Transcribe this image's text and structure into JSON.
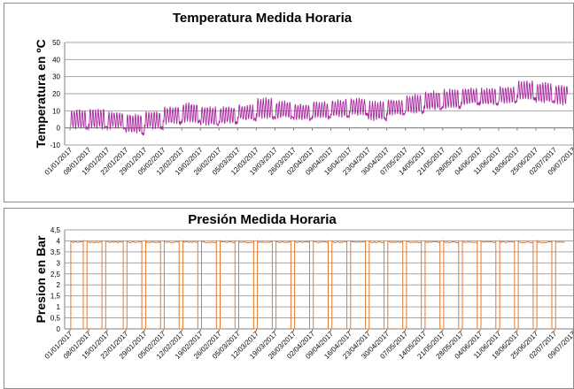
{
  "chart_data": [
    {
      "type": "line",
      "title": "Temperatura Medida Horaria",
      "xlabel": "",
      "ylabel": "Temperatura en ºC",
      "ylim": [
        -10,
        50
      ],
      "yticks": [
        "-10",
        "0",
        "10",
        "20",
        "30",
        "40",
        "50"
      ],
      "grid": true,
      "legend": "none",
      "color": "#a8289e",
      "x_tick_labels": [
        "01/01/2017",
        "08/01/2017",
        "15/01/2017",
        "22/01/2017",
        "29/01/2017",
        "05/02/2017",
        "12/02/2017",
        "19/02/2017",
        "26/02/2017",
        "05/03/2017",
        "12/03/2017",
        "19/03/2017",
        "26/03/2017",
        "02/04/2017",
        "09/04/2017",
        "16/04/2017",
        "23/04/2017",
        "30/04/2017",
        "07/05/2017",
        "14/05/2017",
        "21/05/2017",
        "28/05/2017",
        "04/06/2017",
        "11/06/2017",
        "18/06/2017",
        "25/06/2017",
        "02/07/2017",
        "09/07/2017"
      ],
      "series": [
        {
          "values_daily_range_by_week": [
            {
              "week_start": "01/01/2017",
              "min": 0,
              "max": 10
            },
            {
              "week_start": "08/01/2017",
              "min": 0,
              "max": 11
            },
            {
              "week_start": "15/01/2017",
              "min": 0,
              "max": 9
            },
            {
              "week_start": "22/01/2017",
              "min": -3,
              "max": 8
            },
            {
              "week_start": "29/01/2017",
              "min": 0,
              "max": 9
            },
            {
              "week_start": "05/02/2017",
              "min": 3,
              "max": 12
            },
            {
              "week_start": "12/02/2017",
              "min": 4,
              "max": 14
            },
            {
              "week_start": "19/02/2017",
              "min": 2,
              "max": 12
            },
            {
              "week_start": "26/02/2017",
              "min": 3,
              "max": 12
            },
            {
              "week_start": "05/03/2017",
              "min": 5,
              "max": 13
            },
            {
              "week_start": "12/03/2017",
              "min": 6,
              "max": 17
            },
            {
              "week_start": "19/03/2017",
              "min": 6,
              "max": 15
            },
            {
              "week_start": "26/03/2017",
              "min": 5,
              "max": 14
            },
            {
              "week_start": "02/04/2017",
              "min": 6,
              "max": 15
            },
            {
              "week_start": "09/04/2017",
              "min": 7,
              "max": 16
            },
            {
              "week_start": "16/04/2017",
              "min": 8,
              "max": 17
            },
            {
              "week_start": "23/04/2017",
              "min": 5,
              "max": 15
            },
            {
              "week_start": "30/04/2017",
              "min": 8,
              "max": 16
            },
            {
              "week_start": "07/05/2017",
              "min": 9,
              "max": 19
            },
            {
              "week_start": "14/05/2017",
              "min": 11,
              "max": 21
            },
            {
              "week_start": "21/05/2017",
              "min": 12,
              "max": 22
            },
            {
              "week_start": "28/05/2017",
              "min": 14,
              "max": 23
            },
            {
              "week_start": "04/06/2017",
              "min": 14,
              "max": 23
            },
            {
              "week_start": "11/06/2017",
              "min": 15,
              "max": 24
            },
            {
              "week_start": "18/06/2017",
              "min": 17,
              "max": 27
            },
            {
              "week_start": "25/06/2017",
              "min": 15,
              "max": 26
            },
            {
              "week_start": "02/07/2017",
              "min": 14,
              "max": 25
            }
          ]
        }
      ]
    },
    {
      "type": "line",
      "title": "Presión Medida Horaria",
      "xlabel": "",
      "ylabel": "Presion en Bar",
      "ylim": [
        0,
        4.5
      ],
      "yticks": [
        "0",
        "0,5",
        "1",
        "1,5",
        "2",
        "2,5",
        "3",
        "3,5",
        "4",
        "4,5"
      ],
      "grid": true,
      "legend": "none",
      "color": "#e07b33",
      "x_tick_labels": [
        "01/01/2017",
        "08/01/2017",
        "15/01/2017",
        "22/01/2017",
        "29/01/2017",
        "05/02/2017",
        "12/02/2017",
        "19/02/2017",
        "26/02/2017",
        "05/03/2017",
        "12/03/2017",
        "19/03/2017",
        "26/03/2017",
        "02/04/2017",
        "09/04/2017",
        "16/04/2017",
        "23/04/2017",
        "30/04/2017",
        "07/05/2017",
        "14/05/2017",
        "21/05/2017",
        "28/05/2017",
        "04/06/2017",
        "11/06/2017",
        "18/06/2017",
        "25/06/2017",
        "02/07/2017",
        "09/07/2017"
      ],
      "series": [
        {
          "operating_value": 4.0,
          "drops_to": 0,
          "drop_dates": [
            "06/01/2017",
            "13/01/2017",
            "21/01/2017",
            "28/01/2017",
            "04/02/2017",
            "11/02/2017",
            "18/02/2017",
            "25/02/2017",
            "04/03/2017",
            "11/03/2017",
            "18/03/2017",
            "25/03/2017",
            "01/04/2017",
            "08/04/2017",
            "15/04/2017",
            "22/04/2017",
            "29/04/2017",
            "06/05/2017",
            "13/05/2017",
            "20/05/2017",
            "27/05/2017",
            "03/06/2017",
            "10/06/2017",
            "17/06/2017",
            "24/06/2017",
            "01/07/2017"
          ]
        }
      ]
    }
  ]
}
